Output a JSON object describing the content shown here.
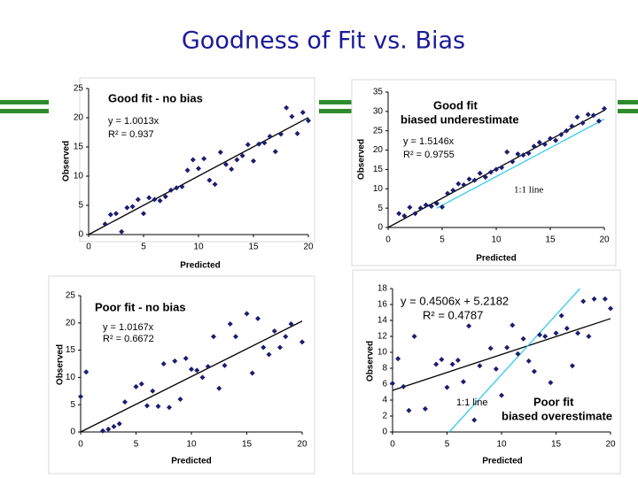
{
  "title": "Goodness of Fit vs. Bias",
  "chart_data": [
    {
      "type": "scatter",
      "xlabel": "Predicted",
      "ylabel": "Observed",
      "annotations": [
        "Good fit - no bias",
        "y = 1.0013x",
        "R² = 0.937"
      ],
      "xlim": [
        0,
        20
      ],
      "ylim": [
        0,
        25
      ],
      "xticks": [
        0,
        5,
        10,
        15,
        20
      ],
      "yticks": [
        0,
        5,
        10,
        15,
        20,
        25
      ],
      "point_color": "#1c1c70",
      "x": [
        1.5,
        2,
        2.5,
        3,
        3.5,
        4,
        4.5,
        5,
        5.5,
        6,
        6.5,
        7,
        7.5,
        8,
        8.5,
        9,
        9.5,
        10,
        10.5,
        11,
        11.5,
        12,
        12.5,
        13,
        13.5,
        14,
        14.5,
        15,
        15.5,
        16,
        16.5,
        17,
        17.5,
        18,
        18.5,
        19,
        19.5,
        20
      ],
      "y": [
        1.8,
        3.4,
        3.6,
        0.5,
        4.6,
        4.8,
        6,
        3.6,
        6.3,
        6,
        5.8,
        6.5,
        7.6,
        8,
        8.2,
        11,
        12.8,
        11.3,
        13,
        9.3,
        8.6,
        14.1,
        12,
        11.2,
        12.8,
        13.5,
        15.4,
        12.6,
        15.5,
        15.7,
        16.8,
        14.2,
        17.2,
        21.7,
        20.2,
        17.3,
        20.9,
        19.5
      ],
      "lines": [
        {
          "x": [
            0,
            20
          ],
          "y": [
            0,
            20.03
          ],
          "color": "#000000"
        }
      ]
    },
    {
      "type": "scatter",
      "xlabel": "Predicted",
      "ylabel": "Observed",
      "annotations": [
        "Good fit",
        "biased underestimate",
        "y = 1.5146x",
        "R² = 0.9755",
        "1:1 line"
      ],
      "xlim": [
        0,
        20
      ],
      "ylim": [
        0,
        35
      ],
      "xticks": [
        0,
        5,
        10,
        15,
        20
      ],
      "yticks": [
        0,
        5,
        10,
        15,
        20,
        25,
        30,
        35
      ],
      "point_color": "#1c1c70",
      "x": [
        1,
        1.5,
        2,
        2.5,
        3,
        3.5,
        4,
        4.5,
        5,
        5.5,
        6,
        6.5,
        7,
        7.5,
        8,
        8.5,
        9,
        9.5,
        10,
        10.5,
        11,
        11.5,
        12,
        12.5,
        13,
        13.5,
        14,
        14.5,
        15,
        15.5,
        16,
        16.5,
        17,
        17.5,
        18,
        18.5,
        19,
        19.5,
        20
      ],
      "y": [
        3.6,
        3,
        5.2,
        3.6,
        5,
        5.8,
        5.5,
        6.2,
        5.3,
        8.8,
        9.6,
        11.3,
        11,
        12.5,
        12.2,
        14,
        13,
        14.3,
        15,
        15.5,
        19.5,
        17,
        19,
        18.7,
        19.2,
        21,
        22,
        21.5,
        23,
        22.5,
        24,
        25,
        26.2,
        28.5,
        27,
        29.2,
        29,
        27.5,
        30.7
      ],
      "lines": [
        {
          "x": [
            0,
            20
          ],
          "y": [
            0,
            30.29
          ],
          "color": "#000000"
        },
        {
          "x": [
            4.5,
            20
          ],
          "y": [
            5,
            28
          ],
          "color": "#33ccee"
        }
      ]
    },
    {
      "type": "scatter",
      "xlabel": "Predicted",
      "ylabel": "Observed",
      "annotations": [
        "Poor fit - no bias",
        "y = 1.0167x",
        "R² = 0.6672"
      ],
      "xlim": [
        0,
        20
      ],
      "ylim": [
        0,
        25
      ],
      "xticks": [
        0,
        5,
        10,
        15,
        20
      ],
      "yticks": [
        0,
        5,
        10,
        15,
        20,
        25
      ],
      "point_color": "#1c1c70",
      "x": [
        0,
        0.5,
        2,
        2.5,
        3,
        3.5,
        4,
        5,
        5.5,
        6,
        6.5,
        7,
        7.5,
        8,
        8.5,
        9,
        9.5,
        10,
        10.5,
        11,
        11.5,
        12,
        12.5,
        13,
        13.5,
        14,
        15,
        15.5,
        16,
        16.5,
        17,
        17.5,
        18,
        18.5,
        19,
        20
      ],
      "y": [
        6.5,
        11,
        0.2,
        0.5,
        1,
        1.5,
        5.5,
        8.3,
        8.8,
        4.8,
        7.5,
        4.7,
        12.5,
        4.5,
        13,
        6,
        13.5,
        11.5,
        11.3,
        10,
        12,
        17.5,
        8,
        12.2,
        19.8,
        17.5,
        21.7,
        10.8,
        20.8,
        15.5,
        14.2,
        18.5,
        15.5,
        17.5,
        19.8,
        16.5
      ],
      "lines": [
        {
          "x": [
            0,
            20
          ],
          "y": [
            0,
            20.33
          ],
          "color": "#000000"
        }
      ]
    },
    {
      "type": "scatter",
      "xlabel": "Predicted",
      "ylabel": "Observed",
      "annotations": [
        "y = 0.4506x + 5.2182",
        "R² = 0.4787",
        "1:1 line",
        "Poor fit",
        "biased overestimate"
      ],
      "xlim": [
        0,
        20
      ],
      "ylim": [
        0,
        18
      ],
      "xticks": [
        0,
        5,
        10,
        15,
        20
      ],
      "yticks": [
        0,
        2,
        4,
        6,
        8,
        10,
        12,
        14,
        16,
        18
      ],
      "point_color": "#1c1c70",
      "x": [
        0,
        0.5,
        1,
        1.5,
        2,
        3,
        4,
        4.5,
        5,
        5.5,
        6,
        6.5,
        7,
        7.5,
        8,
        9,
        9.5,
        10,
        10.5,
        11,
        11.5,
        12,
        12.5,
        13,
        13.5,
        14,
        14.5,
        15,
        15.5,
        16,
        16.5,
        17,
        17.5,
        18,
        18.5,
        19.5,
        20
      ],
      "y": [
        6.1,
        9.2,
        5.7,
        2.7,
        12,
        2.9,
        8.5,
        9.1,
        5.6,
        8.5,
        9,
        6.3,
        13.3,
        1.5,
        8.3,
        10.5,
        7.9,
        4.6,
        10.6,
        13.4,
        9.8,
        11.7,
        8.9,
        7.6,
        12.2,
        12,
        6.2,
        12.4,
        14.6,
        13,
        8.3,
        12.4,
        16.4,
        12,
        16.7,
        16.7,
        15.5
      ],
      "lines": [
        {
          "x": [
            0,
            20
          ],
          "y": [
            5.22,
            14.23
          ],
          "color": "#000000"
        },
        {
          "x": [
            5.2,
            17.2
          ],
          "y": [
            0,
            18
          ],
          "color": "#33ccee"
        }
      ]
    }
  ]
}
